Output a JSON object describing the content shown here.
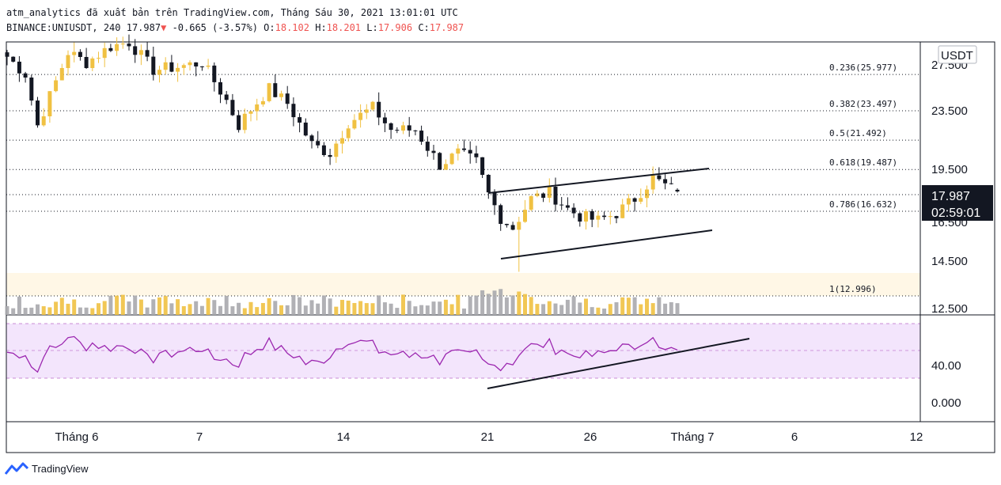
{
  "header": {
    "line1": "atm_analytics đã xuất bản trên TradingView.com, Tháng Sáu 30, 2021 13:01:01 UTC",
    "symbol": "BINANCE:UNIUSDT, 240",
    "last": "17.987",
    "arrow": "▼",
    "change": "-0.665 (-3.57%)",
    "o_label": "O:",
    "o_val": "18.102",
    "h_label": "H:",
    "h_val": "18.201",
    "l_label": "L:",
    "l_val": "17.906",
    "c_label": "C:",
    "c_val": "17.987"
  },
  "price_axis": {
    "currency": "USDT",
    "ticks": [
      "27.500",
      "23.500",
      "19.500",
      "16.500",
      "14.500",
      "12.500"
    ],
    "last_price": "17.987",
    "countdown": "02:59:01"
  },
  "rsi_axis": {
    "ticks": [
      "40.00",
      "0.000"
    ]
  },
  "time_axis": {
    "ticks": [
      "Tháng 6",
      "7",
      "14",
      "21",
      "26",
      "Tháng 7",
      "6",
      "12"
    ]
  },
  "fib_levels": [
    {
      "label": "0.236(25.977)"
    },
    {
      "label": "0.382(23.497)"
    },
    {
      "label": "0.5(21.492)"
    },
    {
      "label": "0.618(19.487)"
    },
    {
      "label": "0.786(16.632)"
    },
    {
      "label": "1(12.996)"
    }
  ],
  "footer": {
    "brand": "TradingView"
  },
  "colors": {
    "up": "#f0c142",
    "down": "#131722",
    "rsi": "#9c27b0",
    "rsi_bg": "#f3e5fc",
    "fib_bg": "#fff7e6",
    "last_price_bg": "#131722"
  },
  "chart_data": {
    "type": "candlestick",
    "symbol": "BINANCE:UNIUSDT",
    "interval": "240",
    "x_ticks": [
      "Tháng 6",
      "7",
      "14",
      "21",
      "26",
      "Tháng 7",
      "6",
      "12"
    ],
    "ylim": [
      12.5,
      28.5
    ],
    "close_path": [
      {
        "t": 0,
        "c": 27.2
      },
      {
        "t": 3,
        "c": 26.0
      },
      {
        "t": 5,
        "c": 22.5
      },
      {
        "t": 8,
        "c": 25.5
      },
      {
        "t": 10,
        "c": 27.5
      },
      {
        "t": 13,
        "c": 26.8
      },
      {
        "t": 17,
        "c": 27.9
      },
      {
        "t": 20,
        "c": 28.2
      },
      {
        "t": 24,
        "c": 26.3
      },
      {
        "t": 28,
        "c": 26.5
      },
      {
        "t": 32,
        "c": 26.8
      },
      {
        "t": 36,
        "c": 24.2
      },
      {
        "t": 38,
        "c": 22.5
      },
      {
        "t": 40,
        "c": 23.6
      },
      {
        "t": 43,
        "c": 25.0
      },
      {
        "t": 46,
        "c": 24.0
      },
      {
        "t": 50,
        "c": 21.2
      },
      {
        "t": 53,
        "c": 20.6
      },
      {
        "t": 56,
        "c": 22.7
      },
      {
        "t": 60,
        "c": 23.7
      },
      {
        "t": 63,
        "c": 22.2
      },
      {
        "t": 67,
        "c": 22.2
      },
      {
        "t": 71,
        "c": 19.8
      },
      {
        "t": 74,
        "c": 20.6
      },
      {
        "t": 77,
        "c": 20.0
      },
      {
        "t": 79,
        "c": 17.8
      },
      {
        "t": 81,
        "c": 16.2
      },
      {
        "t": 83,
        "c": 15.5
      },
      {
        "t": 86,
        "c": 17.5
      },
      {
        "t": 89,
        "c": 17.9
      },
      {
        "t": 92,
        "c": 16.8
      },
      {
        "t": 94,
        "c": 16.3
      },
      {
        "t": 97,
        "c": 16.0
      },
      {
        "t": 100,
        "c": 16.5
      },
      {
        "t": 103,
        "c": 17.5
      },
      {
        "t": 106,
        "c": 18.9
      },
      {
        "t": 108,
        "c": 18.4
      },
      {
        "t": 110,
        "c": 17.99
      }
    ],
    "indicators": [
      "Volume",
      "RSI"
    ],
    "fib_retracement": [
      {
        "ratio": 0.236,
        "price": 25.977
      },
      {
        "ratio": 0.382,
        "price": 23.497
      },
      {
        "ratio": 0.5,
        "price": 21.492
      },
      {
        "ratio": 0.618,
        "price": 19.487
      },
      {
        "ratio": 0.786,
        "price": 16.632
      },
      {
        "ratio": 1,
        "price": 12.996
      }
    ],
    "last": {
      "open": 18.102,
      "high": 18.201,
      "low": 17.906,
      "close": 17.987,
      "change": -0.665,
      "change_pct": -3.57
    }
  }
}
